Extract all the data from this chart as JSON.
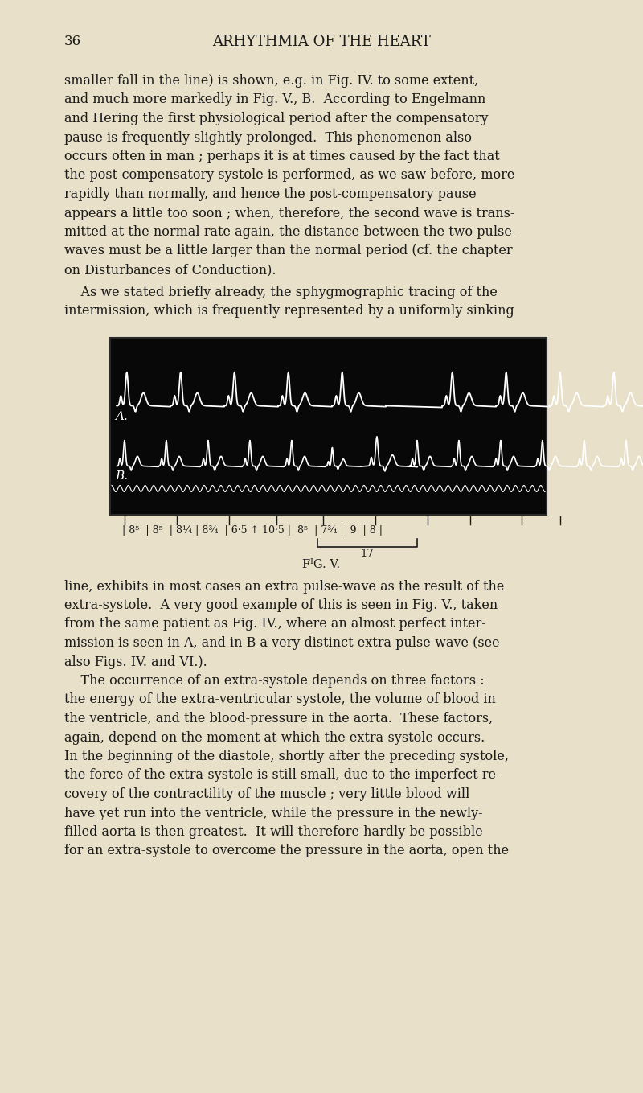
{
  "page_bg": "#e8e0c8",
  "text_color": "#1a1a1a",
  "page_number": "36",
  "header": "ARHYTHMIA OF THE HEART",
  "fig_caption": "FᴵG. V.",
  "body_text_blocks": [
    "smaller fall in the line) is shown, e.g. in Fig. IV. to some extent,",
    "and much more markedly in Fig. V., B.  According to Engelmann",
    "and Hering the first physiological period after the compensatory",
    "pause is frequently slightly prolonged.  This phenomenon also",
    "occurs often in man ; perhaps it is at times caused by the fact that",
    "the post-compensatory systole is performed, as we saw before, more",
    "rapidly than normally, and hence the post-compensatory pause",
    "appears a little too soon ; when, therefore, the second wave is trans-",
    "mitted at the normal rate again, the distance between the two pulse-",
    "waves must be a little larger than the normal period (cf. the chapter",
    "on Disturbances of Conduction)."
  ],
  "body_text_blocks2": [
    "    As we stated briefly already, the sphygmographic tracing of the",
    "intermission, which is frequently represented by a uniformly sinking"
  ],
  "body_text_blocks3": [
    "line, exhibits in most cases an extra pulse-wave as the result of the",
    "extra-systole.  A very good example of this is seen in Fig. V., taken",
    "from the same patient as Fig. IV., where an almost perfect inter-",
    "mission is seen in A, and in B a very distinct extra pulse-wave (see",
    "also Figs. IV. and VI.).",
    "    The occurrence of an extra-systole depends on three factors :",
    "the energy of the extra-ventricular systole, the volume of blood in",
    "the ventricle, and the blood-pressure in the aorta.  These factors,",
    "again, depend on the moment at which the extra-systole occurs.",
    "In the beginning of the diastole, shortly after the preceding systole,",
    "the force of the extra-systole is still small, due to the imperfect re-",
    "covery of the contractility of the muscle ; very little blood will",
    "have yet run into the ventricle, while the pressure in the newly-",
    "filled aorta is then greatest.  It will therefore hardly be possible",
    "for an extra-systole to overcome the pressure in the aorta, open the"
  ],
  "ruler_labels_text": [
    "| 8µ",
    "| 8µ",
    "| 8¼",
    "| 8¾",
    "| 6·5 ↑ 10·5 |",
    "8µ",
    "| 7¾ |",
    "9",
    "| 8 |"
  ],
  "ruler_label_17": "17",
  "label_A": "A.",
  "label_B": "B."
}
